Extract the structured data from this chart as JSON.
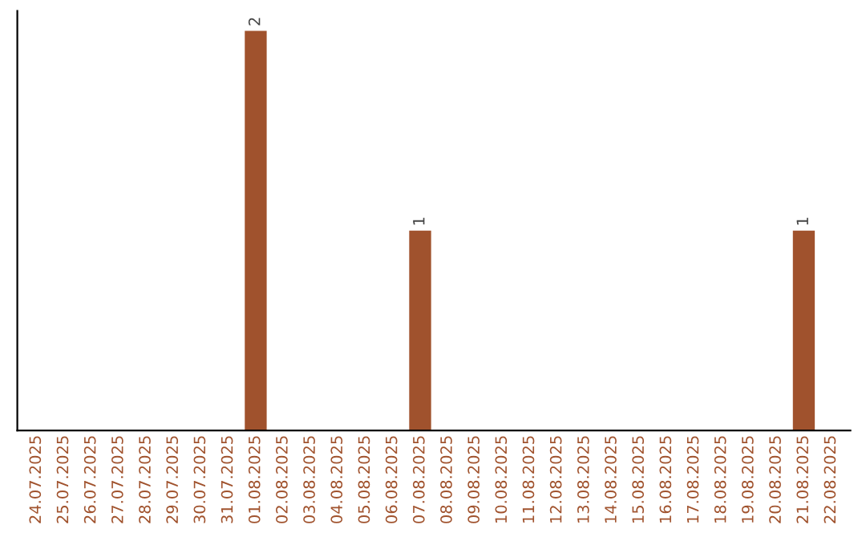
{
  "chart_data": {
    "type": "bar",
    "categories": [
      "24.07.2025",
      "25.07.2025",
      "26.07.2025",
      "27.07.2025",
      "28.07.2025",
      "29.07.2025",
      "30.07.2025",
      "31.07.2025",
      "01.08.2025",
      "02.08.2025",
      "03.08.2025",
      "04.08.2025",
      "05.08.2025",
      "06.08.2025",
      "07.08.2025",
      "08.08.2025",
      "09.08.2025",
      "10.08.2025",
      "11.08.2025",
      "12.08.2025",
      "13.08.2025",
      "14.08.2025",
      "15.08.2025",
      "16.08.2025",
      "17.08.2025",
      "18.08.2025",
      "19.08.2025",
      "20.08.2025",
      "21.08.2025",
      "22.08.2025"
    ],
    "values": [
      0,
      0,
      0,
      0,
      0,
      0,
      0,
      0,
      2,
      0,
      0,
      0,
      0,
      0,
      1,
      0,
      0,
      0,
      0,
      0,
      0,
      0,
      0,
      0,
      0,
      0,
      0,
      0,
      1,
      0
    ],
    "value_labels": [
      null,
      null,
      null,
      null,
      null,
      null,
      null,
      null,
      "2",
      null,
      null,
      null,
      null,
      null,
      "1",
      null,
      null,
      null,
      null,
      null,
      null,
      null,
      null,
      null,
      null,
      null,
      null,
      null,
      "1",
      null
    ],
    "color": "#a0522d",
    "tick_labels": "x",
    "grid": false,
    "legend": false
  }
}
